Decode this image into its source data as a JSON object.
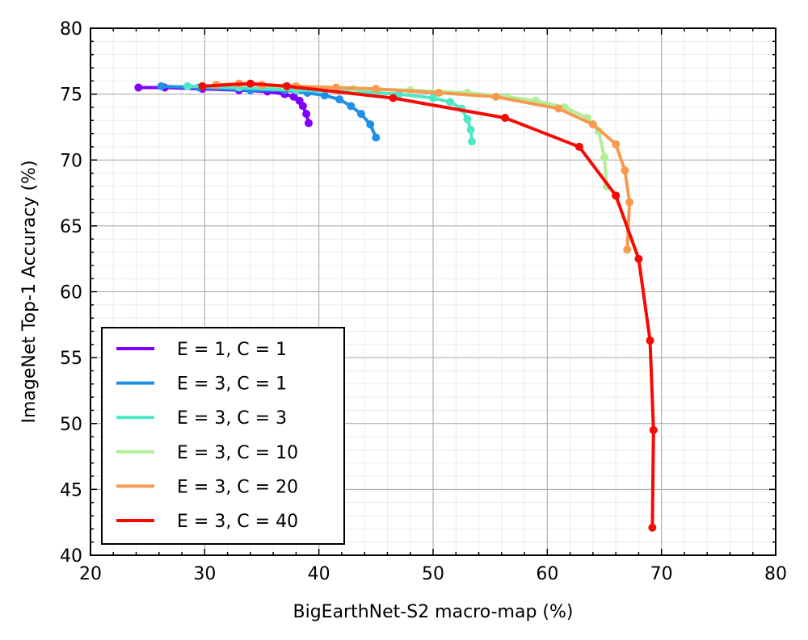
{
  "chart_data": {
    "type": "line",
    "xlabel": "BigEarthNet-S2 macro-map (%)",
    "ylabel": "ImageNet Top-1 Accuracy (%)",
    "xlim": [
      20,
      80
    ],
    "ylim": [
      40,
      80
    ],
    "xticks": [
      "20",
      "30",
      "40",
      "50",
      "60",
      "70",
      "80"
    ],
    "yticks": [
      "40",
      "45",
      "50",
      "55",
      "60",
      "65",
      "70",
      "75",
      "80"
    ],
    "grid": true,
    "legend_position": "bottom-left",
    "series": [
      {
        "name": "E = 1, C = 1",
        "color": "#7f00ff",
        "points": [
          [
            24.2,
            75.5
          ],
          [
            26.5,
            75.5
          ],
          [
            29.8,
            75.4
          ],
          [
            33.0,
            75.3
          ],
          [
            35.5,
            75.2
          ],
          [
            37.0,
            75.0
          ],
          [
            37.8,
            74.8
          ],
          [
            38.3,
            74.5
          ],
          [
            38.6,
            74.1
          ],
          [
            38.9,
            73.5
          ],
          [
            39.1,
            72.8
          ]
        ]
      },
      {
        "name": "E = 3, C = 1",
        "color": "#1e90e6",
        "points": [
          [
            26.2,
            75.6
          ],
          [
            29.5,
            75.5
          ],
          [
            34.0,
            75.3
          ],
          [
            37.0,
            75.3
          ],
          [
            39.0,
            75.1
          ],
          [
            40.5,
            74.9
          ],
          [
            41.8,
            74.6
          ],
          [
            42.8,
            74.1
          ],
          [
            43.7,
            73.5
          ],
          [
            44.5,
            72.7
          ],
          [
            45.0,
            71.7
          ]
        ]
      },
      {
        "name": "E = 3, C = 3",
        "color": "#4de8c8",
        "points": [
          [
            28.5,
            75.6
          ],
          [
            33.0,
            75.5
          ],
          [
            38.0,
            75.3
          ],
          [
            43.0,
            75.2
          ],
          [
            47.0,
            75.0
          ],
          [
            50.0,
            74.7
          ],
          [
            51.5,
            74.4
          ],
          [
            52.5,
            73.9
          ],
          [
            53.0,
            73.1
          ],
          [
            53.3,
            72.3
          ],
          [
            53.4,
            71.4
          ]
        ]
      },
      {
        "name": "E = 3, C = 10",
        "color": "#b2ee96",
        "points": [
          [
            31.0,
            75.7
          ],
          [
            37.0,
            75.6
          ],
          [
            43.0,
            75.4
          ],
          [
            48.0,
            75.3
          ],
          [
            53.0,
            75.1
          ],
          [
            56.5,
            74.8
          ],
          [
            59.0,
            74.5
          ],
          [
            61.5,
            74.0
          ],
          [
            63.5,
            73.2
          ],
          [
            64.5,
            72.2
          ],
          [
            65.0,
            70.2
          ],
          [
            65.2,
            68.0
          ]
        ]
      },
      {
        "name": "E = 3, C = 20",
        "color": "#f79a50",
        "points": [
          [
            31.0,
            75.7
          ],
          [
            33.0,
            75.8
          ],
          [
            35.0,
            75.7
          ],
          [
            38.0,
            75.6
          ],
          [
            41.5,
            75.5
          ],
          [
            45.0,
            75.4
          ],
          [
            50.5,
            75.1
          ],
          [
            55.5,
            74.8
          ],
          [
            61.0,
            73.9
          ],
          [
            64.0,
            72.7
          ],
          [
            66.0,
            71.2
          ],
          [
            66.8,
            69.2
          ],
          [
            67.2,
            66.8
          ],
          [
            67.0,
            63.2
          ]
        ]
      },
      {
        "name": "E = 3, C = 40",
        "color": "#f50a05",
        "points": [
          [
            29.8,
            75.6
          ],
          [
            34.0,
            75.8
          ],
          [
            37.2,
            75.6
          ],
          [
            46.5,
            74.7
          ],
          [
            56.3,
            73.2
          ],
          [
            62.8,
            71.0
          ],
          [
            66.0,
            67.3
          ],
          [
            68.0,
            62.5
          ],
          [
            69.0,
            56.3
          ],
          [
            69.3,
            49.5
          ],
          [
            69.2,
            42.1
          ]
        ]
      }
    ]
  }
}
